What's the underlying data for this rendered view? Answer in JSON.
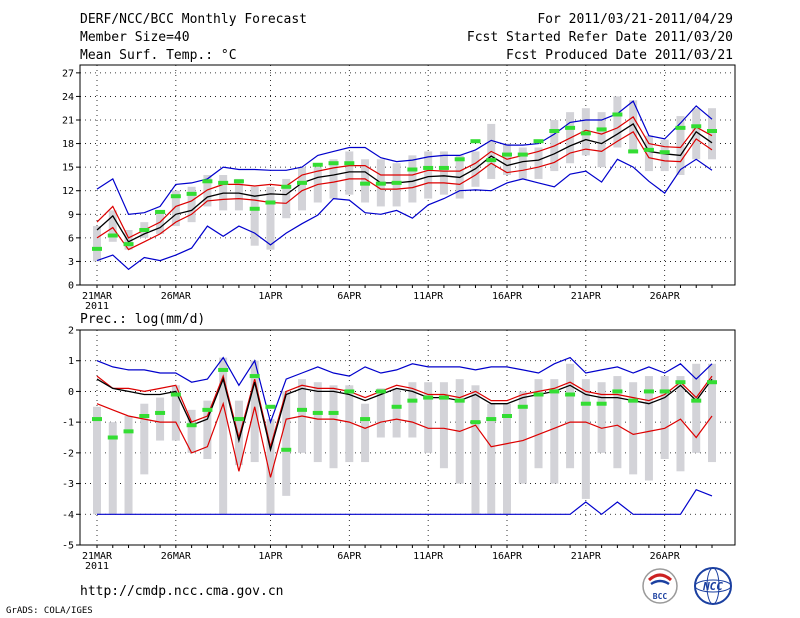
{
  "header": {
    "title": "DERF/NCC/BCC Monthly Forecast",
    "member_size": "Member Size=40",
    "variable": "Mean Surf. Temp.: °C",
    "fcst_period": "For 2011/03/21-2011/04/29",
    "fcst_started": "Fcst Started Refer Date 2011/03/20",
    "fcst_produced": "Fcst Produced Date 2011/03/21"
  },
  "footer": {
    "url": "http://cmdp.ncc.cma.gov.cn",
    "grads_credit": "GrADS: COLA/IGES",
    "logo_bcc_text": "BCC",
    "logo_ncc_text": "NCC"
  },
  "colors": {
    "max_min_line": "#0000cc",
    "spread_line": "#dd0000",
    "mean_line": "#000000",
    "observed_marker": "#33dd33",
    "bar_fill": "#d3d3d8",
    "grid": "#000000"
  },
  "chart_data": [
    {
      "type": "line",
      "title": "Mean Surf. Temp.: °C",
      "x_start": "2011-03-21",
      "n_days": 40,
      "xtick_labels": [
        {
          "day": 0,
          "label": "21MAR",
          "sub": "2011"
        },
        {
          "day": 5,
          "label": "26MAR"
        },
        {
          "day": 11,
          "label": "1APR"
        },
        {
          "day": 16,
          "label": "6APR"
        },
        {
          "day": 21,
          "label": "11APR"
        },
        {
          "day": 26,
          "label": "16APR"
        },
        {
          "day": 31,
          "label": "21APR"
        },
        {
          "day": 36,
          "label": "26APR"
        }
      ],
      "ylim": [
        0,
        28
      ],
      "yticks": [
        0,
        3,
        6,
        9,
        12,
        15,
        18,
        21,
        24,
        27
      ],
      "grid": true,
      "series": [
        {
          "name": "ensemble max",
          "values": [
            12.2,
            13.5,
            9.0,
            9.2,
            10.0,
            12.8,
            13.0,
            13.5,
            15.0,
            14.7,
            14.7,
            14.6,
            14.6,
            15.0,
            16.5,
            17.0,
            17.5,
            17.5,
            16.2,
            15.7,
            15.9,
            16.3,
            16.5,
            16.5,
            17.2,
            18.4,
            17.8,
            17.8,
            18.0,
            19.2,
            20.7,
            21.0,
            21.0,
            21.8,
            23.4,
            19.0,
            18.6,
            20.6,
            22.8,
            21.1
          ]
        },
        {
          "name": "upper spread",
          "values": [
            8.0,
            10.0,
            6.0,
            7.0,
            8.0,
            10.0,
            10.7,
            12.1,
            12.8,
            12.8,
            12.6,
            12.8,
            12.6,
            14.0,
            14.5,
            14.9,
            15.2,
            15.2,
            14.0,
            14.0,
            14.0,
            14.6,
            14.5,
            14.5,
            15.5,
            17.0,
            16.0,
            16.5,
            17.0,
            17.7,
            18.7,
            19.7,
            19.2,
            20.0,
            21.4,
            18.0,
            17.6,
            17.5,
            20.1,
            19.0
          ]
        },
        {
          "name": "ensemble mean",
          "values": [
            7.0,
            8.8,
            5.5,
            6.5,
            7.3,
            9.0,
            9.5,
            11.2,
            11.7,
            11.7,
            11.3,
            11.6,
            11.5,
            13.0,
            13.7,
            14.0,
            14.4,
            14.4,
            13.0,
            13.0,
            13.2,
            13.8,
            13.9,
            13.7,
            14.8,
            16.4,
            15.2,
            15.7,
            15.9,
            16.7,
            17.7,
            18.5,
            18.0,
            19.2,
            20.5,
            17.0,
            16.7,
            16.5,
            19.5,
            18.1
          ]
        },
        {
          "name": "lower spread",
          "values": [
            6.0,
            7.3,
            4.5,
            5.5,
            6.5,
            8.0,
            9.0,
            10.7,
            10.9,
            11.0,
            10.8,
            10.5,
            10.4,
            12.0,
            12.8,
            13.1,
            13.5,
            13.5,
            12.2,
            12.2,
            12.4,
            13.0,
            13.0,
            12.8,
            14.0,
            15.5,
            14.3,
            14.6,
            15.0,
            15.6,
            16.8,
            17.3,
            17.0,
            18.3,
            19.5,
            16.2,
            15.8,
            15.7,
            18.6,
            17.2
          ]
        },
        {
          "name": "ensemble min",
          "values": [
            3.1,
            3.8,
            2.0,
            3.5,
            3.1,
            3.8,
            4.7,
            7.5,
            6.2,
            7.5,
            6.6,
            5.1,
            6.6,
            7.8,
            8.9,
            11.0,
            10.8,
            9.2,
            9.0,
            9.5,
            8.5,
            10.2,
            11.0,
            12.0,
            12.1,
            12.0,
            13.0,
            13.5,
            13.0,
            12.5,
            14.1,
            14.5,
            13.1,
            16.0,
            15.0,
            13.2,
            11.7,
            14.7,
            16.0,
            14.6
          ]
        },
        {
          "name": "observed / reference",
          "values": [
            4.6,
            6.3,
            5.2,
            7.0,
            9.3,
            11.3,
            11.6,
            13.2,
            13.0,
            13.2,
            9.7,
            10.5,
            12.5,
            13.0,
            15.3,
            15.5,
            15.5,
            12.9,
            12.9,
            13.0,
            14.7,
            14.9,
            14.9,
            16.0,
            18.3,
            15.9,
            16.6,
            16.6,
            18.3,
            19.6,
            20.0,
            19.3,
            19.8,
            21.7,
            17.0,
            17.2,
            16.9,
            20.0,
            20.2,
            19.6
          ]
        }
      ],
      "bars": [
        [
          3.0,
          7.5
        ],
        [
          5.5,
          9.5
        ],
        [
          4.5,
          7.0
        ],
        [
          6.0,
          8.0
        ],
        [
          6.5,
          9.5
        ],
        [
          7.5,
          12.0
        ],
        [
          8.0,
          12.5
        ],
        [
          10.0,
          14.0
        ],
        [
          9.5,
          14.0
        ],
        [
          9.5,
          13.5
        ],
        [
          5.0,
          12.5
        ],
        [
          4.5,
          12.5
        ],
        [
          8.5,
          13.5
        ],
        [
          9.5,
          15.0
        ],
        [
          10.5,
          15.0
        ],
        [
          11.0,
          16.0
        ],
        [
          11.5,
          17.0
        ],
        [
          10.5,
          16.0
        ],
        [
          10.0,
          16.0
        ],
        [
          10.0,
          15.5
        ],
        [
          10.5,
          16.5
        ],
        [
          11.0,
          17.0
        ],
        [
          11.5,
          17.0
        ],
        [
          11.0,
          16.5
        ],
        [
          12.5,
          17.0
        ],
        [
          13.5,
          20.5
        ],
        [
          14.0,
          18.0
        ],
        [
          13.5,
          17.5
        ],
        [
          13.5,
          17.5
        ],
        [
          14.5,
          21.0
        ],
        [
          15.5,
          22.0
        ],
        [
          16.5,
          22.5
        ],
        [
          15.0,
          22.0
        ],
        [
          17.5,
          24.0
        ],
        [
          17.0,
          23.5
        ],
        [
          14.5,
          19.0
        ],
        [
          14.5,
          18.5
        ],
        [
          14.0,
          21.5
        ],
        [
          16.0,
          22.5
        ],
        [
          16.0,
          22.5
        ]
      ]
    },
    {
      "type": "line",
      "title": "Prec.: log(mm/d)",
      "x_start": "2011-03-21",
      "n_days": 40,
      "xtick_labels": [
        {
          "day": 0,
          "label": "21MAR",
          "sub": "2011"
        },
        {
          "day": 5,
          "label": "26MAR"
        },
        {
          "day": 11,
          "label": "1APR"
        },
        {
          "day": 16,
          "label": "6APR"
        },
        {
          "day": 21,
          "label": "11APR"
        },
        {
          "day": 26,
          "label": "16APR"
        },
        {
          "day": 31,
          "label": "21APR"
        },
        {
          "day": 36,
          "label": "26APR"
        }
      ],
      "ylim": [
        -5,
        2
      ],
      "yticks": [
        -5,
        -4,
        -3,
        -2,
        -1,
        0,
        1,
        2
      ],
      "grid": true,
      "series": [
        {
          "name": "ensemble max",
          "values": [
            1.0,
            0.8,
            0.7,
            0.7,
            0.6,
            0.6,
            0.3,
            0.4,
            1.1,
            0.2,
            1.0,
            -1.0,
            0.4,
            0.6,
            0.8,
            0.6,
            0.5,
            0.8,
            0.6,
            0.7,
            0.9,
            0.8,
            0.8,
            0.8,
            0.7,
            0.8,
            0.8,
            0.7,
            0.6,
            0.9,
            1.1,
            0.6,
            0.7,
            0.8,
            0.6,
            0.8,
            0.6,
            0.9,
            0.4,
            0.9
          ]
        },
        {
          "name": "upper spread",
          "values": [
            0.5,
            0.1,
            0.1,
            0.0,
            0.1,
            0.2,
            -1.0,
            -0.8,
            0.5,
            -1.5,
            0.4,
            -1.8,
            0.0,
            0.2,
            0.1,
            0.1,
            0.0,
            -0.2,
            0.0,
            0.2,
            0.1,
            -0.1,
            -0.1,
            -0.2,
            0.0,
            -0.3,
            -0.3,
            -0.1,
            0.0,
            0.1,
            0.3,
            0.0,
            -0.1,
            -0.1,
            -0.2,
            -0.3,
            -0.1,
            0.3,
            -0.2,
            0.5
          ]
        },
        {
          "name": "ensemble mean",
          "values": [
            0.4,
            0.1,
            0.0,
            -0.1,
            -0.1,
            0.0,
            -1.1,
            -0.9,
            0.4,
            -1.6,
            0.3,
            -1.9,
            -0.1,
            0.1,
            0.0,
            0.0,
            -0.1,
            -0.3,
            -0.1,
            0.1,
            0.0,
            -0.2,
            -0.2,
            -0.3,
            -0.1,
            -0.4,
            -0.4,
            -0.2,
            -0.1,
            0.0,
            0.2,
            -0.1,
            -0.2,
            -0.2,
            -0.3,
            -0.4,
            -0.2,
            0.2,
            -0.3,
            0.4
          ]
        },
        {
          "name": "lower spread",
          "values": [
            -0.4,
            -0.6,
            -0.8,
            -0.9,
            -1.0,
            -1.0,
            -2.0,
            -1.8,
            -0.4,
            -2.6,
            -0.5,
            -2.8,
            -0.9,
            -0.8,
            -0.9,
            -0.9,
            -1.0,
            -1.2,
            -1.0,
            -0.9,
            -1.0,
            -1.2,
            -1.2,
            -1.3,
            -1.1,
            -1.8,
            -1.7,
            -1.6,
            -1.4,
            -1.2,
            -1.0,
            -1.0,
            -1.2,
            -1.1,
            -1.4,
            -1.3,
            -1.2,
            -0.9,
            -1.5,
            -0.8
          ]
        },
        {
          "name": "ensemble min",
          "values": [
            -4.0,
            -4.0,
            -4.0,
            -4.0,
            -4.0,
            -4.0,
            -4.0,
            -4.0,
            -4.0,
            -4.0,
            -4.0,
            -4.0,
            -4.0,
            -4.0,
            -4.0,
            -4.0,
            -4.0,
            -4.0,
            -4.0,
            -4.0,
            -4.0,
            -4.0,
            -4.0,
            -4.0,
            -4.0,
            -4.0,
            -4.0,
            -4.0,
            -4.0,
            -4.0,
            -4.0,
            -3.6,
            -4.0,
            -3.6,
            -4.0,
            -4.0,
            -4.0,
            -4.0,
            -3.2,
            -3.4
          ]
        },
        {
          "name": "observed / reference",
          "values": [
            -0.9,
            -1.5,
            -1.3,
            -0.8,
            -0.7,
            -0.1,
            -1.1,
            -0.6,
            0.7,
            -0.9,
            0.5,
            -0.5,
            -1.9,
            -0.6,
            -0.7,
            -0.7,
            0.0,
            -0.9,
            0.0,
            -0.5,
            -0.3,
            -0.2,
            -0.2,
            -0.3,
            -1.0,
            -0.9,
            -0.8,
            -0.5,
            -0.1,
            0.0,
            -0.1,
            -0.4,
            -0.4,
            0.0,
            -0.3,
            0.0,
            0.0,
            0.3,
            -0.3,
            0.3
          ]
        }
      ],
      "bars": [
        [
          -4.0,
          -0.5
        ],
        [
          -4.0,
          -1.0
        ],
        [
          -4.0,
          -0.8
        ],
        [
          -2.7,
          -0.4
        ],
        [
          -1.6,
          -0.2
        ],
        [
          -1.6,
          0.2
        ],
        [
          -2.0,
          -0.6
        ],
        [
          -2.2,
          -0.3
        ],
        [
          -4.0,
          1.1
        ],
        [
          -2.4,
          -0.3
        ],
        [
          -2.3,
          1.0
        ],
        [
          -4.0,
          -0.9
        ],
        [
          -3.4,
          0.0
        ],
        [
          -2.0,
          0.4
        ],
        [
          -2.3,
          0.3
        ],
        [
          -2.5,
          0.2
        ],
        [
          -2.3,
          0.2
        ],
        [
          -2.3,
          -0.4
        ],
        [
          -1.5,
          0.1
        ],
        [
          -1.5,
          0.1
        ],
        [
          -1.5,
          0.3
        ],
        [
          -2.0,
          0.3
        ],
        [
          -2.5,
          0.3
        ],
        [
          -3.0,
          0.4
        ],
        [
          -4.0,
          0.2
        ],
        [
          -4.0,
          -0.4
        ],
        [
          -4.0,
          -0.4
        ],
        [
          -3.0,
          0.0
        ],
        [
          -2.5,
          0.4
        ],
        [
          -3.0,
          0.4
        ],
        [
          -2.5,
          0.9
        ],
        [
          -3.5,
          0.4
        ],
        [
          -2.0,
          0.3
        ],
        [
          -2.5,
          0.5
        ],
        [
          -2.7,
          0.3
        ],
        [
          -2.9,
          0.5
        ],
        [
          -2.2,
          0.5
        ],
        [
          -2.6,
          0.5
        ],
        [
          -2.0,
          0.9
        ],
        [
          -2.3,
          0.9
        ]
      ]
    }
  ]
}
